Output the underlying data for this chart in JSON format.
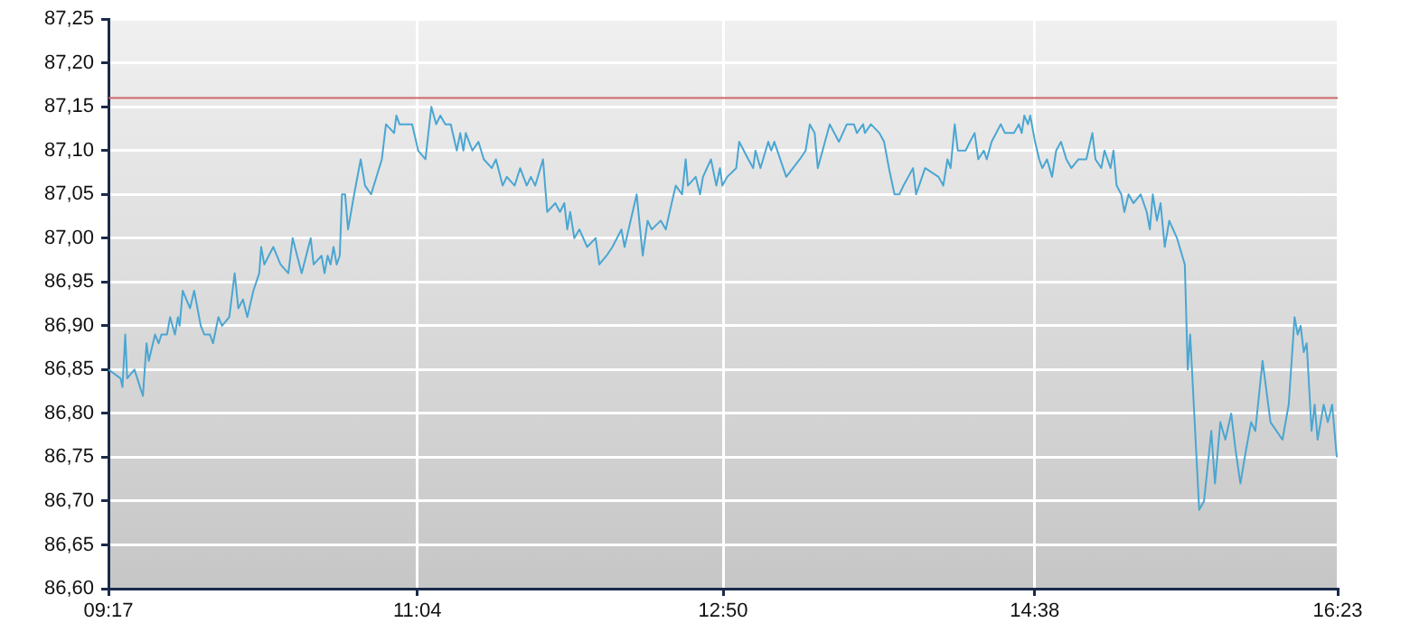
{
  "chart_data": {
    "type": "line",
    "color": "#4aa6d2",
    "marker": "none",
    "grid": true,
    "x": [
      9.283,
      9.353,
      9.364,
      9.38,
      9.391,
      9.433,
      9.482,
      9.503,
      9.516,
      9.552,
      9.573,
      9.589,
      9.621,
      9.639,
      9.667,
      9.684,
      9.694,
      9.712,
      9.754,
      9.778,
      9.816,
      9.837,
      9.869,
      9.887,
      9.918,
      9.939,
      9.981,
      10.012,
      10.033,
      10.06,
      10.085,
      10.12,
      10.154,
      10.165,
      10.183,
      10.235,
      10.277,
      10.322,
      10.347,
      10.399,
      10.451,
      10.468,
      10.514,
      10.531,
      10.549,
      10.566,
      10.583,
      10.601,
      10.619,
      10.632,
      10.65,
      10.667,
      10.702,
      10.74,
      10.765,
      10.8,
      10.862,
      10.886,
      10.933,
      10.946,
      10.964,
      11.037,
      11.072,
      11.114,
      11.148,
      11.176,
      11.2,
      11.229,
      11.26,
      11.295,
      11.315,
      11.333,
      11.347,
      11.385,
      11.42,
      11.451,
      11.497,
      11.521,
      11.56,
      11.584,
      11.629,
      11.661,
      11.699,
      11.723,
      11.748,
      11.793,
      11.817,
      11.864,
      11.891,
      11.916,
      11.933,
      11.95,
      11.974,
      12.003,
      12.048,
      12.097,
      12.118,
      12.16,
      12.194,
      12.246,
      12.264,
      12.334,
      12.369,
      12.397,
      12.421,
      12.473,
      12.502,
      12.536,
      12.56,
      12.596,
      12.617,
      12.63,
      12.675,
      12.7,
      12.717,
      12.763,
      12.794,
      12.815,
      12.829,
      12.857,
      12.909,
      12.926,
      12.979,
      13.007,
      13.02,
      13.049,
      13.094,
      13.111,
      13.129,
      13.198,
      13.276,
      13.31,
      13.334,
      13.362,
      13.38,
      13.449,
      13.502,
      13.548,
      13.589,
      13.606,
      13.642,
      13.652,
      13.687,
      13.736,
      13.763,
      13.791,
      13.823,
      13.851,
      13.875,
      13.903,
      13.93,
      13.948,
      14.0,
      14.077,
      14.105,
      14.129,
      14.147,
      14.171,
      14.189,
      14.234,
      14.259,
      14.286,
      14.307,
      14.339,
      14.356,
      14.384,
      14.437,
      14.461,
      14.513,
      14.541,
      14.558,
      14.573,
      14.594,
      14.607,
      14.635,
      14.659,
      14.677,
      14.704,
      14.733,
      14.757,
      14.785,
      14.816,
      14.845,
      14.886,
      14.931,
      14.966,
      14.984,
      15.018,
      15.036,
      15.071,
      15.088,
      15.106,
      15.133,
      15.151,
      15.175,
      15.203,
      15.245,
      15.28,
      15.298,
      15.315,
      15.339,
      15.36,
      15.384,
      15.41,
      15.455,
      15.5,
      15.517,
      15.531,
      15.583,
      15.611,
      15.653,
      15.674,
      15.705,
      15.734,
      15.768,
      15.792,
      15.821,
      15.855,
      15.883,
      15.907,
      15.949,
      15.995,
      16.064,
      16.1,
      16.134,
      16.152,
      16.169,
      16.187,
      16.204,
      16.232,
      16.25,
      16.267,
      16.302,
      16.326,
      16.351,
      16.378
    ],
    "values": [
      86.85,
      86.84,
      86.83,
      86.89,
      86.84,
      86.85,
      86.82,
      86.88,
      86.86,
      86.89,
      86.88,
      86.89,
      86.89,
      86.91,
      86.89,
      86.91,
      86.9,
      86.94,
      86.92,
      86.94,
      86.9,
      86.89,
      86.89,
      86.88,
      86.91,
      86.9,
      86.91,
      86.96,
      86.92,
      86.93,
      86.91,
      86.94,
      86.96,
      86.99,
      86.97,
      86.99,
      86.97,
      86.96,
      87.0,
      86.96,
      87.0,
      86.97,
      86.98,
      86.96,
      86.98,
      86.97,
      86.99,
      86.97,
      86.98,
      87.05,
      87.05,
      87.01,
      87.05,
      87.09,
      87.06,
      87.05,
      87.09,
      87.13,
      87.12,
      87.14,
      87.13,
      87.13,
      87.1,
      87.09,
      87.15,
      87.13,
      87.14,
      87.13,
      87.13,
      87.1,
      87.12,
      87.1,
      87.12,
      87.1,
      87.11,
      87.09,
      87.08,
      87.09,
      87.06,
      87.07,
      87.06,
      87.08,
      87.06,
      87.07,
      87.06,
      87.09,
      87.03,
      87.04,
      87.03,
      87.04,
      87.01,
      87.03,
      87.0,
      87.01,
      86.99,
      87.0,
      86.97,
      86.98,
      86.99,
      87.01,
      86.99,
      87.05,
      86.98,
      87.02,
      87.01,
      87.02,
      87.01,
      87.04,
      87.06,
      87.05,
      87.09,
      87.06,
      87.07,
      87.05,
      87.07,
      87.09,
      87.06,
      87.08,
      87.06,
      87.07,
      87.08,
      87.11,
      87.09,
      87.08,
      87.1,
      87.08,
      87.11,
      87.1,
      87.11,
      87.07,
      87.09,
      87.1,
      87.13,
      87.12,
      87.08,
      87.13,
      87.11,
      87.13,
      87.13,
      87.12,
      87.13,
      87.12,
      87.13,
      87.12,
      87.11,
      87.08,
      87.05,
      87.05,
      87.06,
      87.07,
      87.08,
      87.05,
      87.08,
      87.07,
      87.06,
      87.09,
      87.08,
      87.13,
      87.1,
      87.1,
      87.11,
      87.12,
      87.09,
      87.1,
      87.09,
      87.11,
      87.13,
      87.12,
      87.12,
      87.13,
      87.12,
      87.14,
      87.13,
      87.14,
      87.11,
      87.09,
      87.08,
      87.09,
      87.07,
      87.1,
      87.11,
      87.09,
      87.08,
      87.09,
      87.09,
      87.12,
      87.09,
      87.08,
      87.1,
      87.08,
      87.1,
      87.06,
      87.05,
      87.03,
      87.05,
      87.04,
      87.05,
      87.03,
      87.01,
      87.05,
      87.02,
      87.04,
      86.99,
      87.02,
      87.0,
      86.97,
      86.85,
      86.89,
      86.69,
      86.7,
      86.78,
      86.72,
      86.79,
      86.77,
      86.8,
      86.76,
      86.72,
      86.76,
      86.79,
      86.78,
      86.86,
      86.79,
      86.77,
      86.81,
      86.91,
      86.89,
      86.9,
      86.87,
      86.88,
      86.78,
      86.81,
      86.77,
      86.81,
      86.79,
      86.81,
      86.75
    ],
    "xlim": [
      9.283,
      16.383
    ],
    "xticks": [
      {
        "value": 9.283,
        "label": "09:17"
      },
      {
        "value": 11.067,
        "label": "11:04"
      },
      {
        "value": 12.833,
        "label": "12:50"
      },
      {
        "value": 14.633,
        "label": "14:38"
      },
      {
        "value": 16.383,
        "label": "16:23"
      }
    ],
    "ylim": [
      86.6,
      87.25
    ],
    "yticks": [
      {
        "value": 86.6,
        "label": "86,60"
      },
      {
        "value": 86.65,
        "label": "86,65"
      },
      {
        "value": 86.7,
        "label": "86,70"
      },
      {
        "value": 86.75,
        "label": "86,75"
      },
      {
        "value": 86.8,
        "label": "86,80"
      },
      {
        "value": 86.85,
        "label": "86,85"
      },
      {
        "value": 86.9,
        "label": "86,90"
      },
      {
        "value": 86.95,
        "label": "86,95"
      },
      {
        "value": 87.0,
        "label": "87,00"
      },
      {
        "value": 87.05,
        "label": "87,05"
      },
      {
        "value": 87.1,
        "label": "87,10"
      },
      {
        "value": 87.15,
        "label": "87,15"
      },
      {
        "value": 87.2,
        "label": "87,20"
      },
      {
        "value": 87.25,
        "label": "87,25"
      }
    ],
    "ref_lines": [
      {
        "axis": "y",
        "value": 87.16,
        "color": "#cc6666"
      }
    ]
  }
}
